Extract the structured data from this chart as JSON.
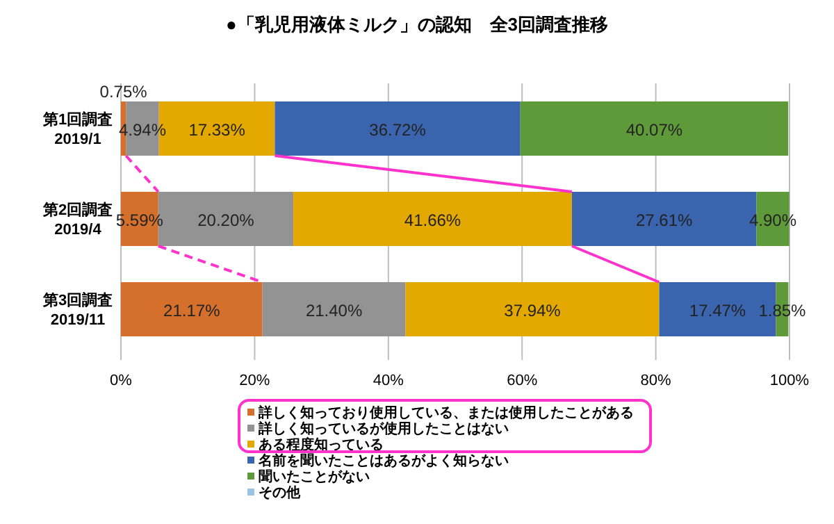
{
  "chart_data": {
    "type": "bar",
    "orientation": "horizontal",
    "stacked": true,
    "title": "●「乳児用液体ミルク」の認知　全3回調査推移",
    "categories": [
      "第1回調査\n2019/1",
      "第2回調査\n2019/4",
      "第3回調査\n2019/11"
    ],
    "series": [
      {
        "name": "詳しく知っており使用している、または使用したことがある",
        "color": "#d4702b",
        "values": [
          0.75,
          5.59,
          21.17
        ],
        "value_labels": [
          "0.75%",
          "5.59%",
          "21.17%"
        ]
      },
      {
        "name": "詳しく知っているが使用したことはない",
        "color": "#939393",
        "values": [
          4.94,
          20.2,
          21.4
        ],
        "value_labels": [
          "4.94%",
          "20.20%",
          "21.40%"
        ]
      },
      {
        "name": "ある程度知っている",
        "color": "#e3a900",
        "values": [
          17.33,
          41.66,
          37.94
        ],
        "value_labels": [
          "17.33%",
          "41.66%",
          "37.94%"
        ]
      },
      {
        "name": "名前を聞いたことはあるがよく知らない",
        "color": "#3a64ad",
        "values": [
          36.72,
          27.61,
          17.47
        ],
        "value_labels": [
          "36.72%",
          "27.61%",
          "17.47%"
        ]
      },
      {
        "name": "聞いたことがない",
        "color": "#5e9a3a",
        "values": [
          40.07,
          4.9,
          1.85
        ],
        "value_labels": [
          "40.07%",
          "4.90%",
          "1.85%"
        ]
      },
      {
        "name": "その他",
        "color": "#9ac3e6",
        "values": [
          null,
          null,
          null
        ],
        "value_labels": [
          null,
          null,
          null
        ]
      }
    ],
    "xlim": [
      0,
      100
    ],
    "xticks": [
      {
        "value": 0,
        "label": "0%"
      },
      {
        "value": 20,
        "label": "20%"
      },
      {
        "value": 40,
        "label": "40%"
      },
      {
        "value": 60,
        "label": "60%"
      },
      {
        "value": 80,
        "label": "80%"
      },
      {
        "value": 100,
        "label": "100%"
      }
    ],
    "grid": "x",
    "legend": "bottom"
  }
}
